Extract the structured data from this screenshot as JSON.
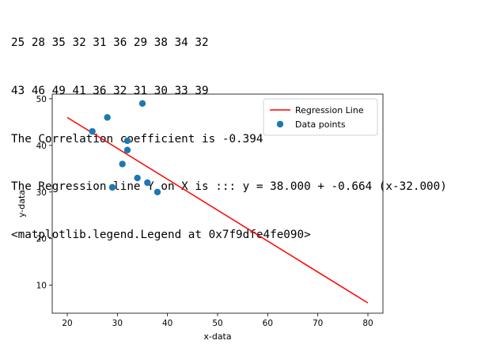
{
  "output": {
    "line1": "25 28 35 32 31 36 29 38 34 32",
    "line2": "43 46 49 41 36 32 31 30 33 39",
    "line3": "The Correlation coefficient is -0.394",
    "line4": "The Regression line Y on X is ::: y = 38.000 + -0.664 (x-32.000)",
    "line5": "<matplotlib.legend.Legend at 0x7f9dfe4fe090>"
  },
  "colors": {
    "regression": "#ff0000",
    "points": "#1f77b4",
    "axis": "#000000"
  },
  "chart_data": {
    "type": "scatter",
    "xlabel": "x-data",
    "ylabel": "y-data",
    "xlim": [
      17,
      83
    ],
    "ylim": [
      4,
      51
    ],
    "xticks": [
      20,
      30,
      40,
      50,
      60,
      70,
      80
    ],
    "yticks": [
      10,
      20,
      30,
      40,
      50
    ],
    "legend_position": "upper right",
    "series": [
      {
        "name": "Regression Line",
        "kind": "line",
        "x": [
          20,
          80
        ],
        "y": [
          46,
          6.2
        ]
      },
      {
        "name": "Data points",
        "kind": "scatter",
        "x": [
          25,
          28,
          35,
          32,
          31,
          36,
          29,
          38,
          34,
          32
        ],
        "y": [
          43,
          46,
          49,
          41,
          36,
          32,
          31,
          30,
          33,
          39
        ]
      }
    ]
  }
}
